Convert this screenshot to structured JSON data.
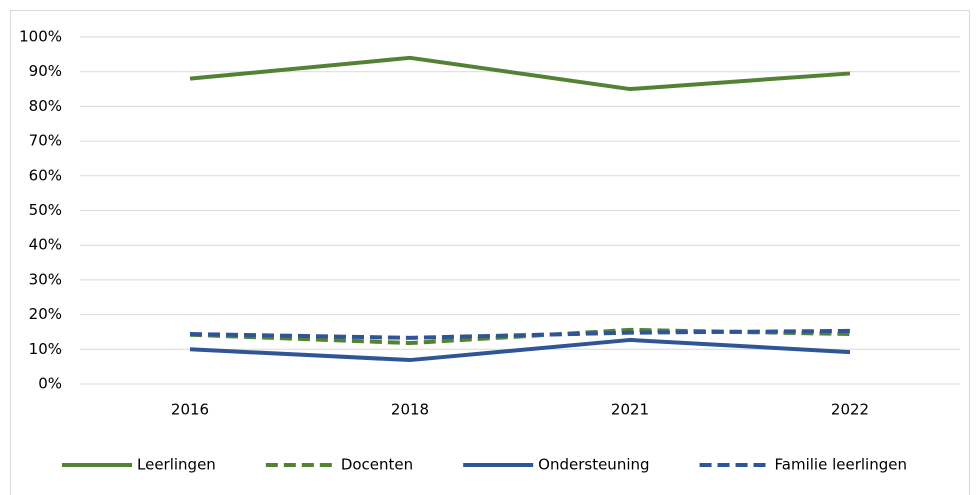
{
  "chart_data": {
    "type": "line",
    "categories": [
      "2016",
      "2018",
      "2021",
      "2022"
    ],
    "series": [
      {
        "name": "Leerlingen",
        "color": "#548235",
        "dash": false,
        "values": [
          88,
          94,
          85,
          89.5
        ]
      },
      {
        "name": "Docenten",
        "color": "#548235",
        "dash": true,
        "values": [
          14.2,
          11.8,
          15.6,
          14.4
        ]
      },
      {
        "name": "Ondersteuning",
        "color": "#2f5597",
        "dash": false,
        "values": [
          10,
          6.9,
          12.7,
          9.2
        ]
      },
      {
        "name": "Familie leerlingen",
        "color": "#2f5597",
        "dash": true,
        "values": [
          14.4,
          13.3,
          14.8,
          15.3
        ]
      }
    ],
    "ylim": [
      0,
      100
    ],
    "yticks": [
      {
        "value": 0,
        "label": "0%"
      },
      {
        "value": 10,
        "label": "10%"
      },
      {
        "value": 20,
        "label": "20%"
      },
      {
        "value": 30,
        "label": "30%"
      },
      {
        "value": 40,
        "label": "40%"
      },
      {
        "value": 50,
        "label": "50%"
      },
      {
        "value": 60,
        "label": "60%"
      },
      {
        "value": 70,
        "label": "70%"
      },
      {
        "value": 80,
        "label": "80%"
      },
      {
        "value": 90,
        "label": "90%"
      },
      {
        "value": 100,
        "label": "100%"
      }
    ],
    "grid": true,
    "legend": "bottom"
  }
}
